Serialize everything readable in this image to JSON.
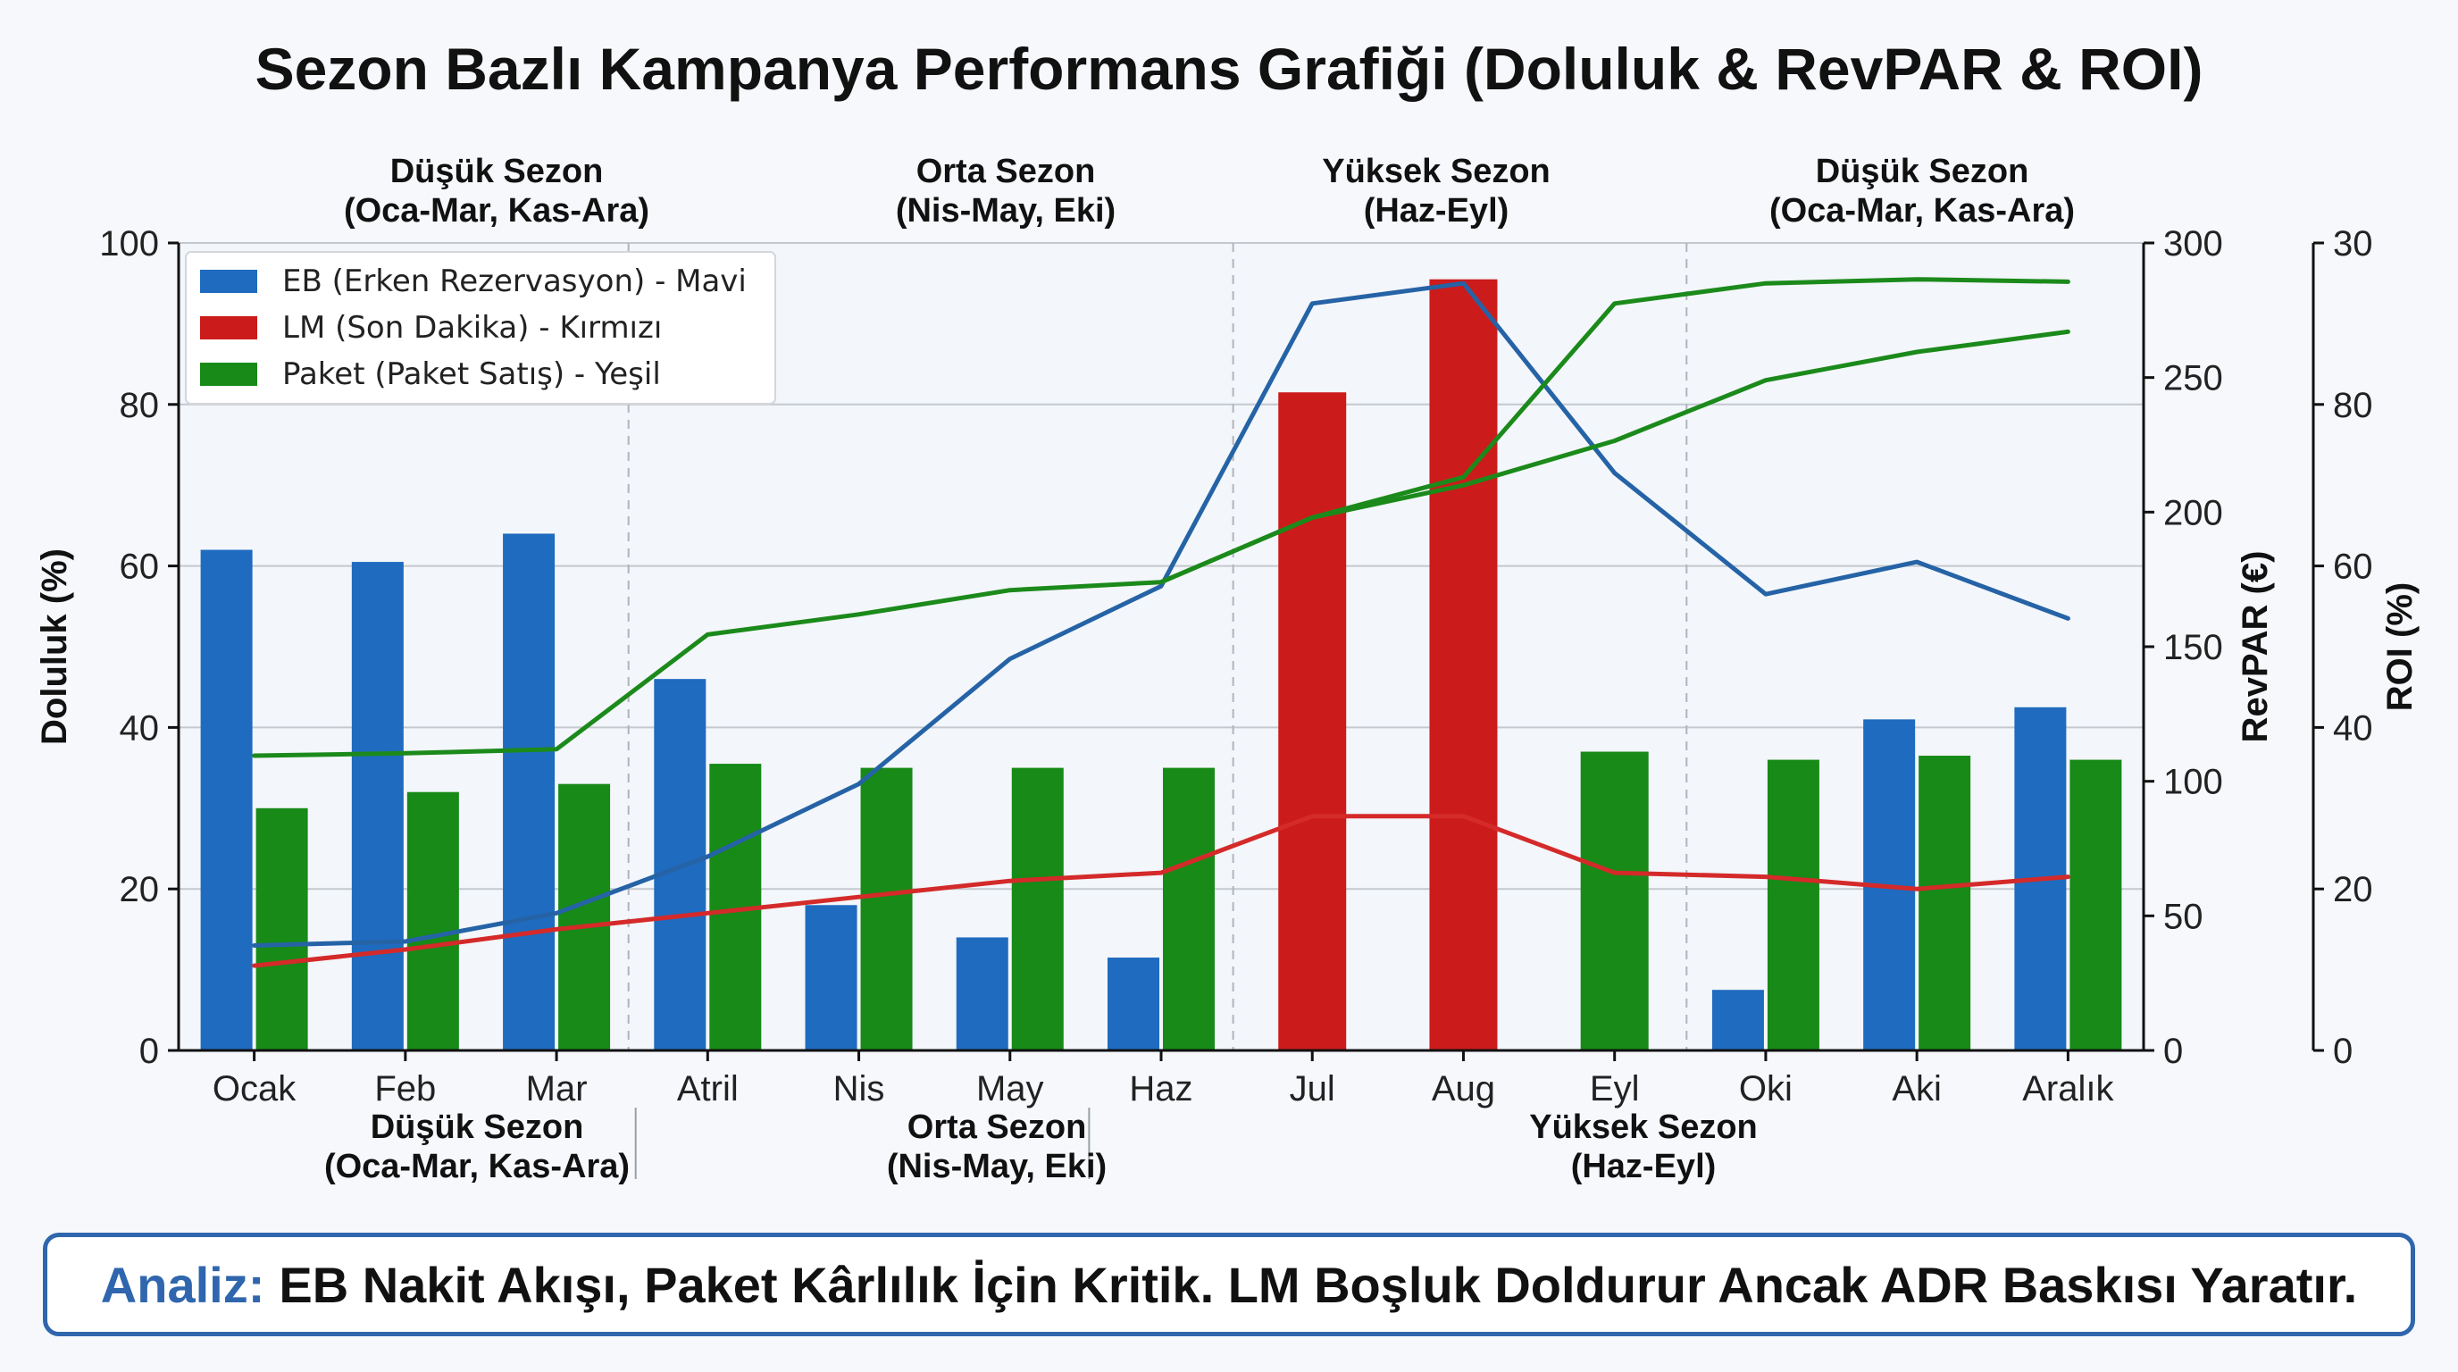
{
  "chart_data": {
    "type": "bar",
    "title": "Sezon Bazlı Kampanya Performans Grafiği (Doluluk & RevPAR & ROI)",
    "categories": [
      "Ocak",
      "Feb",
      "Mar",
      "Atril",
      "Nis",
      "May",
      "Haz",
      "Jul",
      "Aug",
      "Eyl",
      "Oki",
      "Aki",
      "Aralık"
    ],
    "ylabel": "Doluluk (%)",
    "ylim": [
      0,
      100
    ],
    "yticks": [
      "0",
      "20",
      "40",
      "60",
      "80",
      "100"
    ],
    "y2label": "RevPAR (€)",
    "y2lim": [
      0,
      300
    ],
    "y2ticks": [
      "0",
      "50",
      "100",
      "150",
      "200",
      "250",
      "300"
    ],
    "y3label": "ROI (%)",
    "y3lim": [
      0,
      100
    ],
    "y3ticks": [
      "0",
      "20",
      "40",
      "60",
      "80",
      "30"
    ],
    "grid": true,
    "legend_position": "top-left",
    "bar_series": [
      {
        "name": "EB (Erken Rezervasyon) - Mavi",
        "color": "#1f6bbf",
        "values": [
          62,
          60.5,
          64,
          46,
          18,
          14,
          11.5,
          null,
          null,
          null,
          7.5,
          41,
          42.5
        ]
      },
      {
        "name": "LM (Son Dakika) - Kırmızı",
        "color": "#cc1b1b",
        "values": [
          null,
          null,
          null,
          null,
          null,
          null,
          null,
          81.5,
          95.5,
          null,
          null,
          null,
          null
        ]
      },
      {
        "name": "Paket (Paket Satış) - Yeşil",
        "color": "#178a17",
        "values": [
          30,
          32,
          33,
          35.5,
          35,
          35,
          35,
          null,
          null,
          37,
          36,
          36.5,
          36
        ]
      }
    ],
    "line_series": [
      {
        "color": "#2563a6",
        "values": [
          13,
          13.5,
          17,
          24,
          33,
          48.5,
          57.5,
          92.5,
          95,
          71.5,
          56.5,
          60.5,
          53.5
        ]
      },
      {
        "color": "#d42a2a",
        "values": [
          10.5,
          12.5,
          15,
          17,
          19,
          21,
          22,
          29,
          29,
          22,
          21.5,
          20,
          21.5
        ]
      },
      {
        "color": "#1b8a1b",
        "values": [
          36.5,
          36.8,
          37.3,
          51.5,
          54,
          57,
          58,
          66,
          71,
          92.5,
          95,
          95.5,
          95.2
        ]
      },
      {
        "color": "#1b8a1b",
        "values": [
          null,
          null,
          null,
          null,
          null,
          null,
          58,
          66,
          70,
          75.5,
          83,
          86.5,
          89
        ]
      }
    ],
    "top_seasons": [
      {
        "line1": "Düşük Sezon",
        "line2": "(Oca-Mar, Kas-Ara)"
      },
      {
        "line1": "Orta Sezon",
        "line2": "(Nis-May, Eki)"
      },
      {
        "line1": "Yüksek Sezon",
        "line2": "(Haz-Eyl)"
      },
      {
        "line1": "Düşük Sezon",
        "line2": "(Oca-Mar, Kas-Ara)"
      }
    ],
    "bottom_seasons": [
      {
        "line1": "Düşük Sezon",
        "line2": "(Oca-Mar, Kas-Ara)"
      },
      {
        "line1": "Orta Sezon",
        "line2": "(Nis-May, Eki)"
      },
      {
        "line1": "Yüksek Sezon",
        "line2": "(Haz-Eyl)"
      }
    ]
  },
  "analysis": {
    "label": "Analiz:",
    "text": "EB Nakit Akışı, Paket Kârlılık İçin Kritik. LM Boşluk Doldurur Ancak ADR Baskısı Yaratır."
  }
}
